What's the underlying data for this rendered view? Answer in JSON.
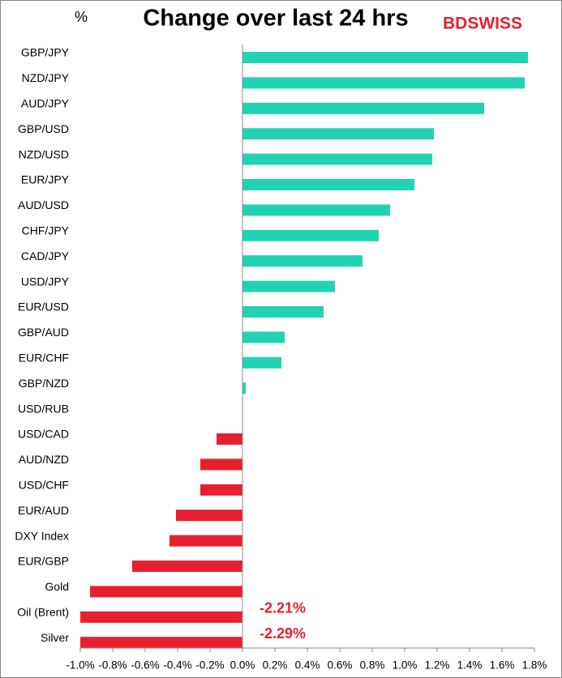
{
  "chart_data": {
    "type": "barh",
    "title": "Change over last 24 hrs",
    "unit_label": "%",
    "logo": "BDSWISS",
    "categories": [
      "GBP/JPY",
      "NZD/JPY",
      "AUD/JPY",
      "GBP/USD",
      "NZD/USD",
      "EUR/JPY",
      "AUD/USD",
      "CHF/JPY",
      "CAD/JPY",
      "USD/JPY",
      "EUR/USD",
      "GBP/AUD",
      "EUR/CHF",
      "GBP/NZD",
      "USD/RUB",
      "USD/CAD",
      "AUD/NZD",
      "USD/CHF",
      "EUR/AUD",
      "DXY Index",
      "EUR/GBP",
      "Gold",
      "Oil (Brent)",
      "Silver"
    ],
    "values": [
      1.76,
      1.74,
      1.49,
      1.18,
      1.17,
      1.06,
      0.91,
      0.84,
      0.74,
      0.57,
      0.5,
      0.26,
      0.24,
      0.02,
      0,
      -0.16,
      -0.26,
      -0.26,
      -0.41,
      -0.45,
      -0.68,
      -0.94,
      -2.21,
      -2.29
    ],
    "value_labels": [
      null,
      null,
      null,
      null,
      null,
      null,
      null,
      null,
      null,
      null,
      null,
      null,
      null,
      null,
      null,
      null,
      null,
      null,
      null,
      null,
      null,
      null,
      "-2.21%",
      "-2.29%"
    ],
    "positive_color": "#20d4b2",
    "negative_color": "#e8202e",
    "xlim": [
      -1.0,
      1.8
    ],
    "xticks": [
      {
        "value": -1.0,
        "label": "-1.0%"
      },
      {
        "value": -0.8,
        "label": "-0.8%"
      },
      {
        "value": -0.6,
        "label": "-0.6%"
      },
      {
        "value": -0.4,
        "label": "-0.4%"
      },
      {
        "value": -0.2,
        "label": "-0.2%"
      },
      {
        "value": 0.0,
        "label": "0.0%"
      },
      {
        "value": 0.2,
        "label": "0.2%"
      },
      {
        "value": 0.4,
        "label": "0.4%"
      },
      {
        "value": 0.6,
        "label": "0.6%"
      },
      {
        "value": 0.8,
        "label": "0.8%"
      },
      {
        "value": 1.0,
        "label": "1.0%"
      },
      {
        "value": 1.2,
        "label": "1.2%"
      },
      {
        "value": 1.4,
        "label": "1.4%"
      },
      {
        "value": 1.6,
        "label": "1.6%"
      },
      {
        "value": 1.8,
        "label": "1.8%"
      }
    ]
  }
}
